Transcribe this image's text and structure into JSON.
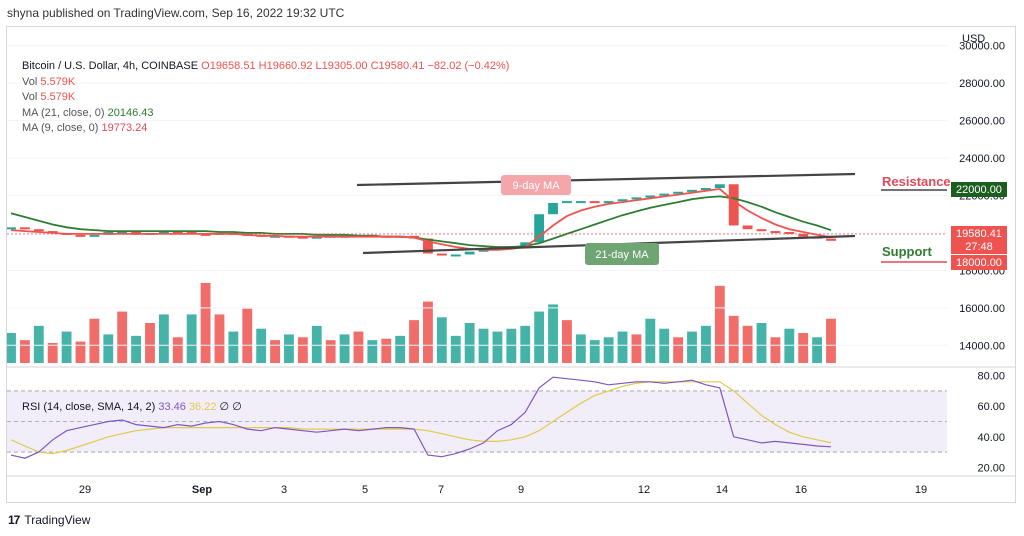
{
  "publish_line": "shyna published on TradingView.com, Sep 16, 2022 19:32 UTC",
  "legend": {
    "symbol": "Bitcoin / U.S. Dollar, 4h, COINBASE",
    "ohlc": {
      "o": "O19658.51",
      "h": "H19660.92",
      "l": "L19305.00",
      "c": "C19580.41",
      "change": "−82.02 (−0.42%)"
    },
    "vol_label": "Vol",
    "vol_value": "5.579K",
    "vol2_label": "Vol",
    "vol2_value": "5.579K",
    "ma21_label": "MA (21, close, 0)",
    "ma21_value": "20146.43",
    "ma9_label": "MA (9, close, 0)",
    "ma9_value": "19773.24"
  },
  "currency": "USD",
  "price_axis": [
    "30000.00",
    "28000.00",
    "26000.00",
    "24000.00",
    "22000.00",
    "20000.00",
    "18000.00",
    "16000.00",
    "14000.00"
  ],
  "time_axis": [
    "29",
    "Sep",
    "3",
    "5",
    "7",
    "9",
    "12",
    "14",
    "16",
    "19"
  ],
  "rsi_legend": {
    "label": "RSI (14, close, SMA, 14, 2)",
    "rsi": "33.46",
    "sma": "36.22",
    "n1": "∅",
    "n2": "∅"
  },
  "rsi_axis": [
    "80.00",
    "60.00",
    "40.00",
    "20.00"
  ],
  "annotations": {
    "ma9": "9-day MA",
    "ma21": "21-day MA",
    "resistance": "Resistance",
    "resistance_level": "22000.00",
    "support": "Support",
    "support_level": "18000.00",
    "last_price": "19580.41",
    "countdown": "27:48"
  },
  "footer": {
    "logo": "17",
    "brand": "TradingView"
  },
  "colors": {
    "up": "#26a69a",
    "down": "#ef5350",
    "ma21": "#2e7d32",
    "ma9": "#ef5350",
    "rsi": "#7e57c2",
    "rsi_sma": "#e2c94a",
    "trendline": "#444444"
  },
  "chart_data": {
    "type": "line",
    "title": "Bitcoin / U.S. Dollar, 4h, COINBASE",
    "x_ticks": [
      "29",
      "Sep",
      "3",
      "5",
      "7",
      "9",
      "12",
      "14",
      "16",
      "19"
    ],
    "price_range": [
      13000,
      31000
    ],
    "price": [
      20300,
      20200,
      20100,
      20000,
      19900,
      19850,
      19900,
      20050,
      20100,
      19900,
      20000,
      20100,
      20050,
      19950,
      19900,
      20000,
      19950,
      19900,
      19800,
      19850,
      19800,
      19750,
      19800,
      19850,
      19850,
      19900,
      19850,
      19800,
      19850,
      19700,
      18900,
      18800,
      18850,
      19000,
      19100,
      19200,
      19300,
      19500,
      21000,
      21600,
      21700,
      21700,
      21600,
      21700,
      21800,
      21900,
      22000,
      22100,
      22200,
      22300,
      22400,
      22600,
      20400,
      20200,
      20100,
      20050,
      19950,
      19800,
      19700,
      19580
    ],
    "ma9": [
      20150,
      20100,
      20050,
      20000,
      19950,
      19950,
      19950,
      19950,
      19950,
      19950,
      19950,
      19950,
      19950,
      19950,
      19950,
      19950,
      19950,
      19900,
      19850,
      19850,
      19800,
      19800,
      19800,
      19800,
      19800,
      19800,
      19800,
      19800,
      19800,
      19750,
      19550,
      19400,
      19250,
      19150,
      19100,
      19100,
      19150,
      19250,
      19800,
      20400,
      20900,
      21200,
      21400,
      21550,
      21650,
      21750,
      21850,
      21950,
      22050,
      22150,
      22250,
      22350,
      21700,
      21200,
      20800,
      20450,
      20200,
      20050,
      19900,
      19773
    ],
    "ma21": [
      21050,
      20850,
      20650,
      20450,
      20300,
      20200,
      20150,
      20100,
      20100,
      20100,
      20100,
      20100,
      20100,
      20100,
      20100,
      20050,
      20050,
      20000,
      20000,
      19950,
      19950,
      19950,
      19900,
      19900,
      19900,
      19850,
      19850,
      19800,
      19800,
      19750,
      19650,
      19550,
      19450,
      19350,
      19300,
      19250,
      19250,
      19300,
      19450,
      19700,
      19950,
      20200,
      20450,
      20700,
      20950,
      21150,
      21350,
      21500,
      21650,
      21800,
      21900,
      21950,
      21850,
      21650,
      21400,
      21100,
      20850,
      20600,
      20400,
      20146
    ],
    "volume": [
      2.1,
      1.6,
      2.6,
      1.4,
      2.2,
      1.5,
      3.1,
      2.0,
      3.6,
      1.9,
      2.8,
      3.4,
      1.8,
      3.4,
      5.6,
      3.4,
      2.2,
      3.8,
      2.4,
      1.6,
      2.0,
      1.8,
      2.6,
      1.6,
      2.0,
      2.2,
      1.6,
      1.7,
      1.9,
      3.0,
      4.3,
      3.2,
      1.9,
      2.8,
      2.4,
      2.2,
      2.4,
      2.6,
      3.6,
      4.1,
      3.0,
      2.0,
      1.6,
      1.8,
      2.2,
      2.0,
      3.1,
      2.4,
      1.8,
      2.2,
      2.6,
      5.4,
      3.3,
      2.6,
      2.8,
      1.8,
      2.4,
      2.1,
      1.8,
      3.1
    ],
    "volume_up": [
      true,
      false,
      true,
      false,
      true,
      false,
      false,
      true,
      false,
      true,
      false,
      true,
      false,
      true,
      false,
      false,
      true,
      false,
      true,
      false,
      true,
      false,
      true,
      false,
      true,
      false,
      true,
      false,
      true,
      false,
      false,
      true,
      true,
      true,
      true,
      true,
      true,
      true,
      true,
      true,
      false,
      true,
      true,
      true,
      true,
      false,
      true,
      true,
      false,
      true,
      true,
      false,
      false,
      false,
      true,
      false,
      true,
      false,
      true,
      false
    ],
    "rsi_range": [
      15,
      85
    ],
    "rsi": [
      28,
      26,
      30,
      38,
      44,
      46,
      48,
      50,
      51,
      48,
      47,
      46,
      48,
      47,
      49,
      50,
      48,
      45,
      44,
      46,
      45,
      44,
      43,
      44,
      45,
      44,
      45,
      46,
      46,
      45,
      28,
      27,
      29,
      32,
      36,
      44,
      48,
      56,
      72,
      79,
      78,
      77,
      76,
      74,
      75,
      76,
      76,
      75,
      76,
      77,
      74,
      72,
      40,
      38,
      36,
      37,
      36,
      35,
      34,
      33.46
    ],
    "rsi_sma": [
      38,
      34,
      30,
      29,
      31,
      34,
      37,
      40,
      42,
      44,
      45,
      46,
      46,
      46,
      46,
      46,
      46,
      46,
      46,
      46,
      46,
      45,
      45,
      45,
      45,
      45,
      45,
      45,
      45,
      45,
      44,
      42,
      40,
      38,
      37,
      37,
      38,
      40,
      44,
      50,
      56,
      62,
      67,
      70,
      73,
      75,
      76,
      76,
      76,
      76,
      76,
      76,
      70,
      62,
      54,
      48,
      43,
      40,
      38,
      36.22
    ],
    "rsi_bands": [
      30,
      50,
      70
    ],
    "resistance_line": {
      "from": 22800,
      "to": 22900
    },
    "support_line": {
      "from": 18800,
      "to": 19300
    }
  }
}
